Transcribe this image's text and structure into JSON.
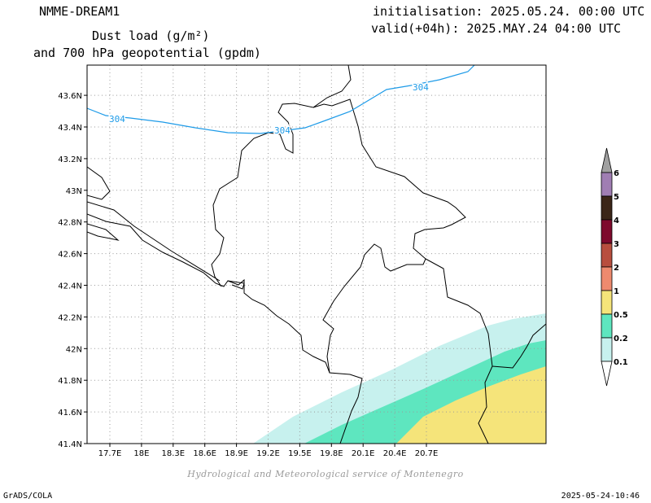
{
  "header": {
    "model_name": "NMME-DREAM1",
    "title_line1": "Dust load (g/m²)",
    "title_line2": "and 700 hPa geopotential (gpdm)",
    "init_text": "initialisation: 2025.05.24. 00:00 UTC",
    "valid_text": "valid(+04h): 2025.MAY.24 04:00 UTC"
  },
  "map": {
    "lat_labels": [
      "43.6N",
      "43.4N",
      "43.2N",
      "43N",
      "42.8N",
      "42.6N",
      "42.4N",
      "42.2N",
      "42N",
      "41.8N",
      "41.6N",
      "41.4N"
    ],
    "lon_labels": [
      "17.7E",
      "18E",
      "18.3E",
      "18.6E",
      "18.9E",
      "19.2E",
      "19.5E",
      "19.8E",
      "20.1E",
      "20.4E",
      "20.7E"
    ],
    "contour_color": "#1e9be8",
    "contour_labels": [
      "304",
      "304",
      "304"
    ],
    "dust_colors": {
      "band_0_1": "#c7f1ee",
      "band_0_2": "#5ee6bf",
      "band_0_5": "#f5e47a"
    }
  },
  "legend": {
    "labels": [
      "6",
      "5",
      "4",
      "3",
      "2",
      "1",
      "0.5",
      "0.2",
      "0.1"
    ],
    "colors": [
      "#a07eb3",
      "#3b2618",
      "#7e0a2d",
      "#b84e3e",
      "#ee8a6e",
      "#f5e47a",
      "#5ee6bf",
      "#c7f1ee"
    ],
    "top_cap_color": "#a0a0a0",
    "bottom_cap_color": "#ffffff"
  },
  "credit": "Hydrological and Meteorological service of Montenegro",
  "footer": {
    "left": "GrADS/COLA",
    "right": "2025-05-24-10:46"
  }
}
